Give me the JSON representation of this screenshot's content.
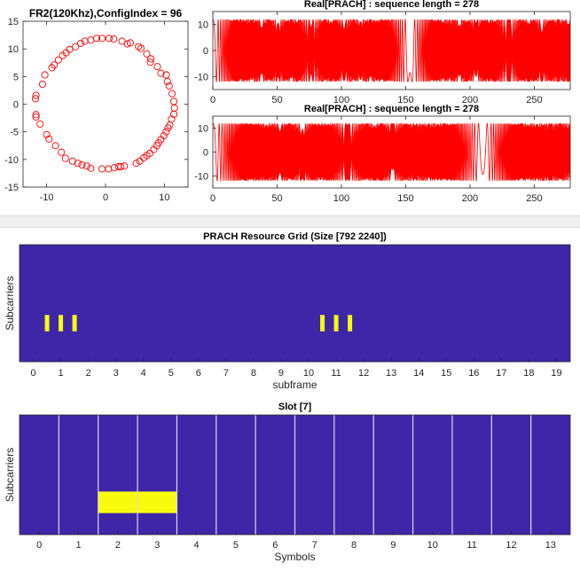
{
  "chart_data": [
    {
      "type": "scatter",
      "title": "FR2(120Khz),ConfigIndex = 96",
      "xlim": [
        -14,
        14
      ],
      "ylim": [
        -15,
        15
      ],
      "xticks": [
        -10,
        0,
        10
      ],
      "yticks": [
        -15,
        -10,
        -5,
        0,
        5,
        10,
        15
      ],
      "marker": "circle-open",
      "color": "#ff0000",
      "points": [
        [
          -2.5,
          11.6
        ],
        [
          -1.5,
          11.9
        ],
        [
          -0.6,
          11.9
        ],
        [
          0.6,
          11.9
        ],
        [
          1.4,
          11.8
        ],
        [
          2.8,
          11.4
        ],
        [
          3.7,
          10.9
        ],
        [
          4.2,
          11.1
        ],
        [
          5.6,
          10.4
        ],
        [
          6.0,
          10.1
        ],
        [
          7.0,
          9.1
        ],
        [
          7.7,
          8.2
        ],
        [
          7.6,
          7.6
        ],
        [
          8.8,
          6.8
        ],
        [
          9.4,
          5.6
        ],
        [
          10.3,
          5.3
        ],
        [
          10.5,
          4.1
        ],
        [
          10.8,
          3.3
        ],
        [
          11.3,
          1.9
        ],
        [
          11.6,
          0.5
        ],
        [
          11.7,
          -0.7
        ],
        [
          11.6,
          -1.8
        ],
        [
          11.2,
          -2.7
        ],
        [
          10.9,
          -3.8
        ],
        [
          10.6,
          -4.3
        ],
        [
          10.3,
          -5.0
        ],
        [
          9.9,
          -5.7
        ],
        [
          9.4,
          -6.4
        ],
        [
          9.0,
          -7.0
        ],
        [
          8.7,
          -7.5
        ],
        [
          8.2,
          -8.2
        ],
        [
          7.5,
          -8.9
        ],
        [
          7.0,
          -9.3
        ],
        [
          6.5,
          -9.7
        ],
        [
          5.8,
          -10.3
        ],
        [
          5.2,
          -10.7
        ],
        [
          3.2,
          -11.2
        ],
        [
          2.6,
          -11.3
        ],
        [
          2.2,
          -11.3
        ],
        [
          1.5,
          -11.5
        ],
        [
          0.5,
          -11.7
        ],
        [
          -0.6,
          -11.7
        ],
        [
          -2.5,
          -11.6
        ],
        [
          -3.2,
          -11.2
        ],
        [
          -4.0,
          -11.0
        ],
        [
          -4.7,
          -10.7
        ],
        [
          -5.6,
          -10.3
        ],
        [
          -6.8,
          -9.8
        ],
        [
          -7.5,
          -8.7
        ],
        [
          -8.5,
          -7.5
        ],
        [
          -9.6,
          -6.3
        ],
        [
          -10.0,
          -5.5
        ],
        [
          -11.1,
          -3.6
        ],
        [
          -11.8,
          -2.3
        ],
        [
          -11.8,
          -1.9
        ],
        [
          -11.9,
          1.0
        ],
        [
          -11.8,
          1.6
        ],
        [
          -10.7,
          3.6
        ],
        [
          -10.3,
          5.3
        ],
        [
          -9.1,
          6.6
        ],
        [
          -8.7,
          7.1
        ],
        [
          -8.0,
          8.0
        ],
        [
          -7.3,
          8.8
        ],
        [
          -6.7,
          9.3
        ],
        [
          -6.1,
          9.9
        ],
        [
          -5.1,
          10.4
        ],
        [
          -4.2,
          11.0
        ],
        [
          -3.5,
          11.4
        ]
      ]
    },
    {
      "type": "line",
      "title": "Real[PRACH] : sequence length = 278",
      "xlim": [
        0,
        278
      ],
      "ylim": [
        -15,
        15
      ],
      "xticks": [
        0,
        50,
        100,
        150,
        200,
        250
      ],
      "yticks": [
        -10,
        0,
        10
      ],
      "color": "#ff0000",
      "x_range": [
        0,
        278
      ],
      "waveform": "chirp-like real part, amplitude about 12, dense oscillation bursts around x = 30-60, 80-130, 180-200, 210-260"
    },
    {
      "type": "line",
      "title": "Real[PRACH] : sequence length = 278",
      "xlim": [
        0,
        278
      ],
      "ylim": [
        -15,
        15
      ],
      "xticks": [
        0,
        50,
        100,
        150,
        200,
        250
      ],
      "yticks": [
        -10,
        0,
        10
      ],
      "color": "#ff0000",
      "x_range": [
        0,
        278
      ],
      "waveform": "chirp-like real part, amplitude about 12, dense oscillation bursts around x = 40-90 and 180-230"
    },
    {
      "type": "heatmap",
      "title": "PRACH Resource Grid (Size [792 2240])",
      "xlabel": "subframe",
      "ylabel": "Subcarriers",
      "xlim": [
        -0.5,
        19.5
      ],
      "xticks": [
        0,
        1,
        2,
        3,
        4,
        5,
        6,
        7,
        8,
        9,
        10,
        11,
        12,
        13,
        14,
        15,
        16,
        17,
        18,
        19
      ],
      "background_color": "#3d26a8",
      "highlight_color": "#f9fb0e",
      "highlight_centers": [
        0.5,
        1.0,
        1.5,
        10.5,
        11.0,
        11.5
      ],
      "highlight_vertical_span": [
        0.6,
        0.74
      ]
    },
    {
      "type": "heatmap",
      "title": "Slot [7]",
      "xlabel": "Symbols",
      "ylabel": "Subcarriers",
      "xlim": [
        -0.5,
        13.5
      ],
      "xticks": [
        0,
        1,
        2,
        3,
        4,
        5,
        6,
        7,
        8,
        9,
        10,
        11,
        12,
        13
      ],
      "background_color": "#3d26a8",
      "highlight_color": "#f9fb0e",
      "symbol_boundaries": true,
      "highlight_symbols": [
        2,
        3
      ],
      "highlight_vertical_span": [
        0.64,
        0.82
      ]
    }
  ]
}
